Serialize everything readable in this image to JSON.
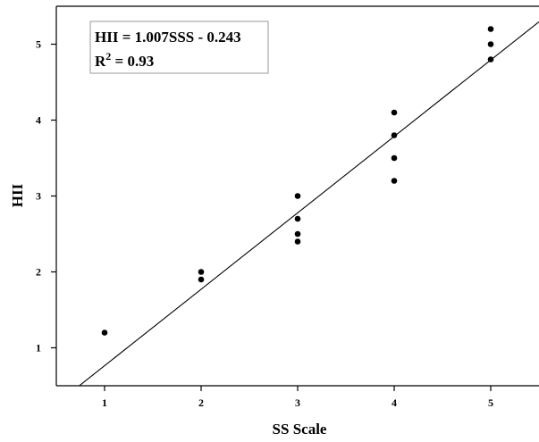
{
  "chart_data": {
    "type": "scatter",
    "title": "",
    "xlabel": "SS Scale",
    "ylabel": "HII",
    "xlim": [
      0.5,
      5.5
    ],
    "ylim": [
      0.5,
      5.5
    ],
    "x_ticks": [
      1,
      2,
      3,
      4,
      5
    ],
    "y_ticks": [
      1,
      2,
      3,
      4,
      5
    ],
    "grid": false,
    "points": {
      "x": [
        1,
        2,
        2,
        3,
        3,
        3,
        3,
        4,
        4,
        4,
        4,
        5,
        5,
        5
      ],
      "y": [
        1.2,
        2.0,
        1.9,
        3.0,
        2.7,
        2.5,
        2.4,
        4.1,
        3.8,
        3.5,
        3.2,
        5.2,
        5.0,
        4.8
      ]
    },
    "regression": {
      "slope": 1.007,
      "intercept": -0.243
    },
    "annotation": {
      "equation": "HII = 1.007SSS - 0.243",
      "r2_prefix": "R",
      "r2_sup": "2",
      "r2_value": " = 0.93"
    },
    "colors": {
      "points": "#000000",
      "line": "#000000",
      "axes": "#000000"
    }
  }
}
